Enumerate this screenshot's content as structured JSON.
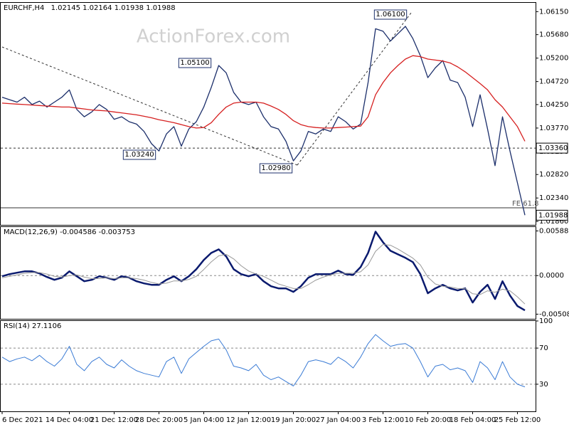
{
  "chart_data": [
    {
      "type": "line",
      "symbol": "EURCHF,H4",
      "ohlc": [
        1.02145,
        1.02164,
        1.01938,
        1.01988
      ],
      "watermark": "ActionForex.com",
      "ylim": [
        1.0179,
        1.0633
      ],
      "yticks": [
        {
          "value": 1.0615,
          "label": "1.06150"
        },
        {
          "value": 1.0568,
          "label": "1.05680"
        },
        {
          "value": 1.052,
          "label": "1.05200"
        },
        {
          "value": 1.0472,
          "label": "1.04720"
        },
        {
          "value": 1.0425,
          "label": "1.04250"
        },
        {
          "value": 1.0377,
          "label": "1.03770"
        },
        {
          "value": 1.0329,
          "label": "1.03290"
        },
        {
          "value": 1.0282,
          "label": "1.02820"
        },
        {
          "value": 1.0234,
          "label": "1.02340"
        },
        {
          "value": 1.0186,
          "label": "1.01860"
        }
      ],
      "series": [
        {
          "color": "#1c2f6b",
          "values": [
            1.044,
            1.0435,
            1.043,
            1.044,
            1.0425,
            1.0432,
            1.042,
            1.043,
            1.044,
            1.0455,
            1.0415,
            1.04,
            1.041,
            1.0425,
            1.0415,
            1.0395,
            1.04,
            1.039,
            1.0385,
            1.037,
            1.0345,
            1.033,
            1.0365,
            1.038,
            1.034,
            1.0375,
            1.039,
            1.042,
            1.046,
            1.0505,
            1.049,
            1.045,
            1.043,
            1.0425,
            1.043,
            1.04,
            1.038,
            1.0375,
            1.035,
            1.031,
            1.033,
            1.037,
            1.0365,
            1.0375,
            1.037,
            1.04,
            1.039,
            1.0375,
            1.0385,
            1.047,
            1.058,
            1.0575,
            1.0555,
            1.057,
            1.0585,
            1.056,
            1.0525,
            1.048,
            1.05,
            1.0515,
            1.0475,
            1.047,
            1.044,
            1.038,
            1.0445,
            1.0375,
            1.03,
            1.04,
            1.033,
            1.0265,
            1.0199
          ]
        },
        {
          "color": "#d62020",
          "values": [
            1.0428,
            1.0427,
            1.0426,
            1.0425,
            1.0424,
            1.0423,
            1.0422,
            1.0421,
            1.042,
            1.042,
            1.0418,
            1.0416,
            1.0414,
            1.0413,
            1.0412,
            1.041,
            1.0408,
            1.0406,
            1.0404,
            1.0401,
            1.0398,
            1.0394,
            1.0391,
            1.0388,
            1.0384,
            1.038,
            1.0377,
            1.0378,
            1.0388,
            1.0405,
            1.042,
            1.0428,
            1.043,
            1.043,
            1.043,
            1.0428,
            1.0422,
            1.0415,
            1.0405,
            1.0392,
            1.0384,
            1.038,
            1.0378,
            1.0377,
            1.0377,
            1.0378,
            1.0379,
            1.038,
            1.0381,
            1.04,
            1.0445,
            1.047,
            1.049,
            1.0505,
            1.0518,
            1.0525,
            1.0523,
            1.0518,
            1.0516,
            1.0514,
            1.051,
            1.0502,
            1.0492,
            1.048,
            1.0468,
            1.0455,
            1.0435,
            1.042,
            1.04,
            1.038,
            1.035
          ]
        }
      ],
      "annotations": [
        {
          "value": 1.051,
          "label": "1.05100"
        },
        {
          "value": 1.0324,
          "label": "1.03240"
        },
        {
          "value": 1.0298,
          "label": "1.02980"
        },
        {
          "value": 1.061,
          "label": "1.06100"
        }
      ],
      "hlines": [
        {
          "value": 1.0336,
          "label": "1.03360",
          "style": "dashed"
        },
        {
          "value": 1.01988,
          "label": "1.01988",
          "style": "none"
        }
      ],
      "fe_line": {
        "value": 1.0214,
        "label": "FE 61.8"
      }
    },
    {
      "type": "line",
      "title": "MACD(12,26,9)",
      "ylim": [
        -0.0057,
        0.0064
      ],
      "yticks": [
        0.005882,
        {
          "value": 0,
          "label": "0.0000"
        },
        -0.005085
      ],
      "levels": [
        0
      ],
      "series": [
        {
          "color": "#0a1a6e",
          "width": 2.5,
          "values": [
            -9.3e-05,
            0.000187,
            0.000374,
            0.00056,
            0.00056,
            0.00028,
            -0.000187,
            -0.00056,
            -0.00028,
            0.00056,
            -9.3e-05,
            -0.000747,
            -0.00056,
            -9.3e-05,
            -0.00028,
            -0.00056,
            -9.3e-05,
            -0.00028,
            -0.000747,
            -0.001027,
            -0.001214,
            -0.001214,
            -0.00056,
            -9.3e-05,
            -0.000747,
            -9.3e-05,
            0.000841,
            0.002055,
            0.002989,
            0.003456,
            0.002522,
            0.000841,
            0.000187,
            -9.3e-05,
            0.000187,
            -0.000747,
            -0.001401,
            -0.001681,
            -0.001681,
            -0.002148,
            -0.001401,
            -0.00028,
            0.000187,
            0.000187,
            0.000187,
            0.000654,
            0.000187,
            9.3e-05,
            0.001121,
            0.002989,
            0.005791,
            0.00439,
            0.003269,
            0.002802,
            0.002335,
            0.001775,
            0.000187,
            -0.002335,
            -0.001681,
            -0.001214,
            -0.001681,
            -0.001961,
            -0.001681,
            -0.003549,
            -0.002148,
            -0.001214,
            -0.003082,
            -0.000747,
            -0.002615,
            -0.004016,
            -0.004586
          ]
        },
        {
          "color": "#999999",
          "width": 1,
          "values": [
            -0.0003,
            -0.0001,
            0.0001,
            0.0003,
            0.0004,
            0.0004,
            0.0002,
            -0.0001,
            -0.0002,
            0,
            0.0001,
            -0.0002,
            -0.0004,
            -0.0004,
            -0.0003,
            -0.0004,
            -0.0003,
            -0.0003,
            -0.0004,
            -0.0006,
            -0.0009,
            -0.0011,
            -0.001,
            -0.0007,
            -0.0007,
            -0.0005,
            -0.0001,
            0.0008,
            0.0018,
            0.0026,
            0.0028,
            0.0022,
            0.0013,
            0.0006,
            0.0002,
            -0.0001,
            -0.0006,
            -0.0011,
            -0.0014,
            -0.0017,
            -0.0017,
            -0.0012,
            -0.0006,
            -0.0002,
            0.0001,
            0.0003,
            0.0003,
            0.0003,
            0.0005,
            0.0014,
            0.0032,
            0.0041,
            0.004,
            0.0035,
            0.0029,
            0.0023,
            0.0014,
            -0.0002,
            -0.0011,
            -0.0014,
            -0.0015,
            -0.0017,
            -0.0017,
            -0.0024,
            -0.0025,
            -0.002,
            -0.0022,
            -0.0018,
            -0.002,
            -0.0028,
            -0.003753
          ]
        }
      ]
    },
    {
      "type": "line",
      "title": "RSI(14)",
      "ylim": [
        0,
        100
      ],
      "yticks": [
        100,
        70,
        30
      ],
      "levels": [
        70,
        30
      ],
      "categories": [
        "6 Dec 2021",
        null,
        null,
        null,
        null,
        null,
        null,
        null,
        null,
        "14 Dec 04:00",
        null,
        null,
        null,
        null,
        null,
        "21 Dec 12:00",
        null,
        null,
        null,
        null,
        null,
        "28 Dec 20:00",
        null,
        null,
        null,
        null,
        null,
        "5 Jan 04:00",
        null,
        null,
        null,
        null,
        null,
        "12 Jan 12:00",
        null,
        null,
        null,
        null,
        null,
        "19 Jan 20:00",
        null,
        null,
        null,
        null,
        null,
        "27 Jan 04:00",
        null,
        null,
        null,
        null,
        null,
        "3 Feb 12:00",
        null,
        null,
        null,
        null,
        null,
        "10 Feb 20:00",
        null,
        null,
        null,
        null,
        null,
        "18 Feb 04:00",
        null,
        null,
        null,
        null,
        null,
        "25 Feb 12:00",
        null
      ],
      "series": [
        {
          "color": "#3a7bd5",
          "width": 1,
          "values": [
            60,
            55,
            58,
            60,
            56,
            62,
            55,
            50,
            58,
            72,
            52,
            45,
            55,
            60,
            52,
            48,
            57,
            50,
            45,
            42,
            40,
            38,
            55,
            60,
            42,
            58,
            65,
            72,
            78,
            80,
            68,
            50,
            48,
            45,
            52,
            40,
            35,
            38,
            33,
            28,
            40,
            55,
            57,
            55,
            52,
            60,
            55,
            48,
            60,
            75,
            85,
            78,
            72,
            74,
            75,
            70,
            55,
            38,
            50,
            52,
            46,
            48,
            45,
            32,
            55,
            48,
            35,
            55,
            38,
            30,
            27.1106
          ]
        }
      ]
    }
  ]
}
